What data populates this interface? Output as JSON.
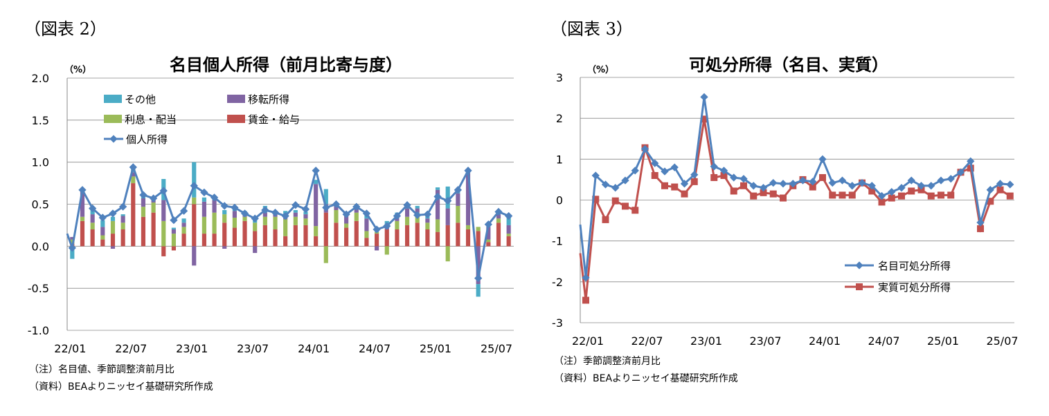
{
  "left": {
    "fig_label": "（図表 2）",
    "unit": "（%）",
    "note1": "（注）名目値、季節調整済前月比",
    "note2": "（資料）BEAよりニッセイ基礎研究所作成"
  },
  "right": {
    "fig_label": "（図表 3）",
    "unit": "（%）",
    "note1": "（注）季節調整済前月比",
    "note2": "（資料）BEAよりニッセイ基礎研究所作成"
  },
  "colors": {
    "other": "#4bacc6",
    "transfer": "#8064a2",
    "interest": "#9bbb59",
    "wages": "#c0504d",
    "nominal": "#4f81bd",
    "real": "#c0504d"
  },
  "chart_data": [
    {
      "type": "bar",
      "title": "名目個人所得（前月比寄与度）",
      "ylim": [
        -1.0,
        2.0
      ],
      "yticks": [
        "2.0",
        "1.5",
        "1.0",
        "0.5",
        "0.0",
        "-0.5",
        "-1.0"
      ],
      "xtick_labels": [
        "22/01",
        "22/07",
        "23/01",
        "23/07",
        "24/01",
        "24/07",
        "25/01",
        "25/07"
      ],
      "legend_position": "top-left",
      "grid": true,
      "series": [
        {
          "name": "賃金・給与",
          "kind": "bar",
          "values": [
            0.03,
            0.3,
            0.2,
            0.08,
            0.15,
            0.2,
            0.75,
            0.35,
            0.4,
            -0.12,
            -0.05,
            0.15,
            0.5,
            0.15,
            0.15,
            0.28,
            0.22,
            0.3,
            0.18,
            0.25,
            0.2,
            0.12,
            0.25,
            0.25,
            0.12,
            0.4,
            0.28,
            0.22,
            0.3,
            0.1,
            0.15,
            0.2,
            0.2,
            0.25,
            0.28,
            0.2,
            0.17,
            0.25,
            0.28,
            0.2,
            0.18,
            0.05,
            0.28,
            0.12
          ]
        },
        {
          "name": "利息・配当",
          "kind": "bar",
          "values": [
            0.05,
            0.05,
            0.08,
            0.05,
            0.15,
            0.08,
            0.08,
            0.12,
            0.12,
            0.3,
            0.15,
            0.08,
            0.08,
            0.2,
            0.25,
            0.1,
            0.12,
            0.05,
            0.1,
            0.1,
            0.15,
            0.2,
            0.1,
            0.08,
            0.12,
            -0.2,
            0.15,
            0.05,
            0.1,
            0.08,
            0.02,
            -0.1,
            0.1,
            0.1,
            0.12,
            0.08,
            0.15,
            -0.18,
            0.2,
            0.05,
            0.05,
            0.03,
            0.05,
            0.03
          ]
        },
        {
          "name": "移転所得",
          "kind": "bar",
          "values": [
            0.03,
            0.3,
            0.1,
            0.1,
            -0.03,
            0.08,
            0.05,
            0.1,
            0.05,
            0.25,
            0.05,
            0.05,
            -0.23,
            0.18,
            0.15,
            -0.03,
            0.08,
            0.05,
            -0.08,
            0.05,
            0.05,
            0.05,
            0.05,
            0.05,
            0.5,
            0.1,
            0.05,
            0.1,
            0.05,
            0.15,
            -0.05,
            0.05,
            0.05,
            0.1,
            0.05,
            0.05,
            0.35,
            0.2,
            0.15,
            0.62,
            -0.45,
            0.15,
            0.05,
            0.1
          ]
        },
        {
          "name": "その他",
          "kind": "bar",
          "values": [
            -0.15,
            0.03,
            0.05,
            0.08,
            0.05,
            0.02,
            0.05,
            0.05,
            0.02,
            0.25,
            0.02,
            0.05,
            0.42,
            0.05,
            0.05,
            0.05,
            0.05,
            0.02,
            0.05,
            0.08,
            0.02,
            0.05,
            0.03,
            0.03,
            0.05,
            0.18,
            0.03,
            0.02,
            0.03,
            0.05,
            0.05,
            0.05,
            0.05,
            0.02,
            0.03,
            0.05,
            0.03,
            0.26,
            0.05,
            0.05,
            -0.15,
            0.04,
            0.05,
            0.1
          ]
        },
        {
          "name": "個人所得",
          "kind": "line",
          "values": [
            -0.02,
            0.67,
            0.45,
            0.34,
            0.39,
            0.47,
            0.94,
            0.61,
            0.57,
            0.66,
            0.31,
            0.42,
            0.72,
            0.64,
            0.58,
            0.48,
            0.46,
            0.39,
            0.33,
            0.43,
            0.4,
            0.36,
            0.49,
            0.44,
            0.9,
            0.46,
            0.5,
            0.38,
            0.47,
            0.39,
            0.2,
            0.24,
            0.36,
            0.49,
            0.37,
            0.38,
            0.59,
            0.54,
            0.67,
            0.9,
            -0.38,
            0.26,
            0.41,
            0.36
          ]
        }
      ]
    },
    {
      "type": "line",
      "title": "可処分所得（名目、実質）",
      "ylim": [
        -3,
        3
      ],
      "yticks": [
        "3",
        "2",
        "1",
        "0",
        "-1",
        "-2",
        "-3"
      ],
      "xtick_labels": [
        "22/01",
        "22/07",
        "23/01",
        "23/07",
        "24/01",
        "24/07",
        "25/01",
        "25/07"
      ],
      "legend_position": "bottom-right",
      "grid": true,
      "series": [
        {
          "name": "名目可処分所得",
          "values": [
            -1.9,
            0.6,
            0.38,
            0.3,
            0.48,
            0.72,
            1.25,
            0.9,
            0.7,
            0.8,
            0.4,
            0.62,
            2.52,
            0.82,
            0.72,
            0.55,
            0.52,
            0.35,
            0.3,
            0.42,
            0.4,
            0.4,
            0.48,
            0.45,
            1.0,
            0.42,
            0.48,
            0.35,
            0.42,
            0.35,
            0.1,
            0.2,
            0.3,
            0.48,
            0.35,
            0.35,
            0.48,
            0.52,
            0.68,
            0.95,
            -0.55,
            0.25,
            0.4,
            0.38
          ]
        },
        {
          "name": "実質可処分所得",
          "values": [
            -2.45,
            0.02,
            -0.48,
            -0.02,
            -0.15,
            -0.25,
            1.28,
            0.6,
            0.35,
            0.32,
            0.15,
            0.45,
            1.98,
            0.55,
            0.6,
            0.22,
            0.35,
            0.1,
            0.18,
            0.15,
            0.05,
            0.35,
            0.5,
            0.32,
            0.55,
            0.12,
            0.12,
            0.12,
            0.42,
            0.22,
            -0.05,
            0.05,
            0.1,
            0.22,
            0.25,
            0.1,
            0.12,
            0.12,
            0.68,
            0.78,
            -0.7,
            -0.03,
            0.25,
            0.1
          ]
        }
      ]
    }
  ]
}
